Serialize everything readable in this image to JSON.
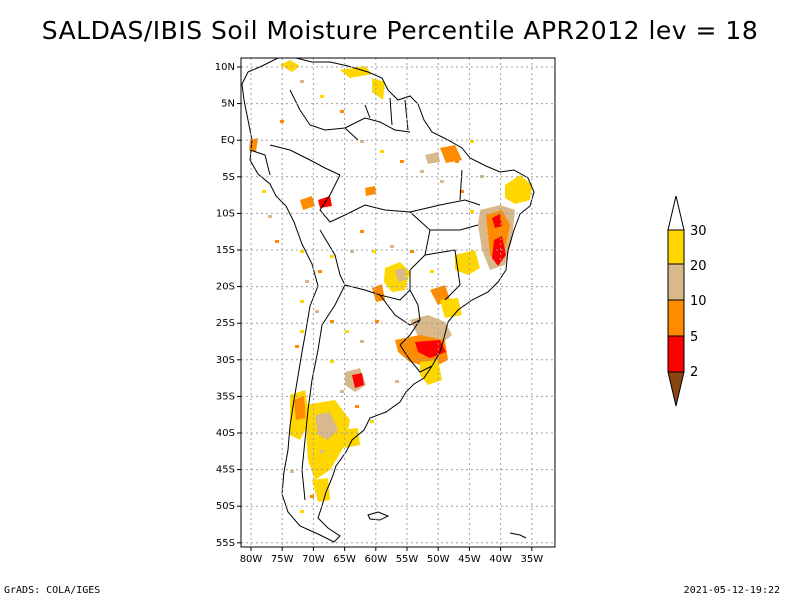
{
  "title": "SALDAS/IBIS Soil Moisture Percentile APR2012 lev = 18",
  "map": {
    "lat_ticks": [
      "10N",
      "5N",
      "EQ",
      "5S",
      "10S",
      "15S",
      "20S",
      "25S",
      "30S",
      "35S",
      "40S",
      "45S",
      "50S",
      "55S"
    ],
    "lon_ticks": [
      "80W",
      "75W",
      "70W",
      "65W",
      "60W",
      "55W",
      "50W",
      "45W",
      "40W",
      "35W"
    ],
    "lat_range": [
      -56,
      12
    ],
    "lon_range": [
      -81,
      -34
    ]
  },
  "legend": {
    "labels": [
      "30",
      "20",
      "10",
      "5",
      "2"
    ],
    "colors": {
      "above_30": "#ffffff",
      "c20_30": "#ffd700",
      "c10_20": "#d9b88c",
      "c5_10": "#ff8c00",
      "c2_5": "#ff0000",
      "below_2": "#8b4513"
    }
  },
  "footer": {
    "left": "GrADS: COLA/IGES",
    "right": "2021-05-12-19:22"
  }
}
